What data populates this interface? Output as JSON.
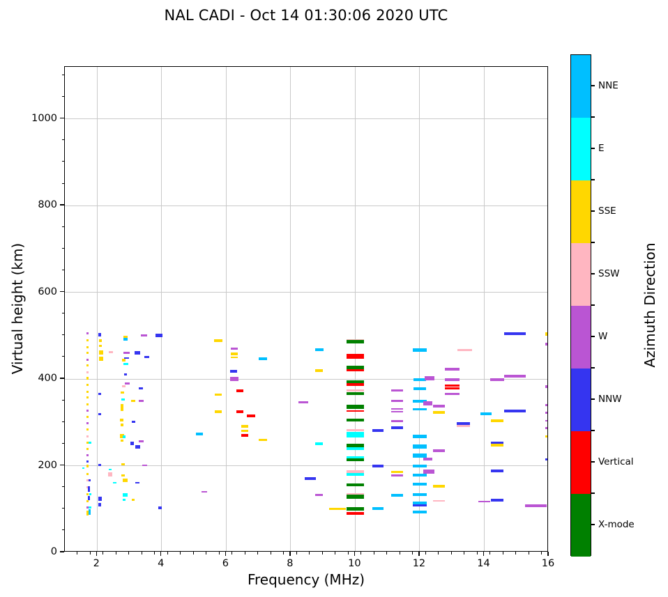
{
  "title": "NAL CADI - Oct 14 01:30:06 2020 UTC",
  "chart_data": {
    "type": "scatter",
    "title": "NAL CADI - Oct 14 01:30:06 2020 UTC",
    "xlabel": "Frequency (MHz)",
    "ylabel": "Virtual height (km)",
    "xlim": [
      1,
      16
    ],
    "ylim": [
      0,
      1120
    ],
    "x_ticks": [
      2,
      4,
      6,
      8,
      10,
      12,
      14,
      16
    ],
    "y_ticks": [
      0,
      200,
      400,
      600,
      800,
      1000
    ],
    "x_minor_step": 0.4,
    "y_minor_step": 50,
    "grid": true,
    "marker": "horizontal-dash",
    "colorbar": {
      "label": "Azimuth Direction",
      "segments_top_to_bottom": [
        {
          "label": "NNE",
          "color": "#00BFFF"
        },
        {
          "label": "E",
          "color": "#00FFFF"
        },
        {
          "label": "SSE",
          "color": "#FFD700"
        },
        {
          "label": "SSW",
          "color": "#FFB6C1"
        },
        {
          "label": "W",
          "color": "#BA55D3"
        },
        {
          "label": "NNW",
          "color": "#3535F0"
        },
        {
          "label": "Vertical",
          "color": "#FF0000"
        },
        {
          "label": "X-mode",
          "color": "#008000"
        }
      ]
    },
    "direction_colors": {
      "NNE": "#00BFFF",
      "E": "#00FFFF",
      "SSE": "#FFD700",
      "SSW": "#FFB6C1",
      "W": "#BA55D3",
      "NNW": "#3535F0",
      "V": "#FF0000",
      "X": "#008000"
    },
    "points_format": [
      "freq_MHz",
      "height_km",
      "direction",
      "dash_width_MHz",
      "dash_thickness_px"
    ],
    "points": [
      [
        1.7,
        505,
        "W",
        0.07,
        3
      ],
      [
        1.7,
        490,
        "SSE",
        0.07,
        3
      ],
      [
        1.7,
        474,
        "SSE",
        0.07,
        3
      ],
      [
        1.7,
        460,
        "SSE",
        0.07,
        3
      ],
      [
        1.7,
        445,
        "W",
        0.07,
        3
      ],
      [
        1.7,
        431,
        "SSE",
        0.07,
        3
      ],
      [
        1.7,
        416,
        "SSW",
        0.07,
        3
      ],
      [
        1.7,
        401,
        "SSE",
        0.07,
        4
      ],
      [
        1.7,
        386,
        "SSE",
        0.07,
        3
      ],
      [
        1.7,
        371,
        "SSE",
        0.07,
        3
      ],
      [
        1.7,
        357,
        "SSE",
        0.07,
        3
      ],
      [
        1.7,
        342,
        "SSE",
        0.07,
        3
      ],
      [
        1.7,
        327,
        "W",
        0.07,
        3
      ],
      [
        1.7,
        312,
        "SSE",
        0.07,
        3
      ],
      [
        1.7,
        298,
        "W",
        0.07,
        3
      ],
      [
        1.7,
        283,
        "SSE",
        0.07,
        3
      ],
      [
        1.7,
        268,
        "SSW",
        0.07,
        3
      ],
      [
        1.7,
        253,
        "SSE",
        0.07,
        3
      ],
      [
        1.78,
        253,
        "E",
        0.07,
        3
      ],
      [
        1.7,
        239,
        "SSE",
        0.07,
        3
      ],
      [
        1.7,
        224,
        "W",
        0.07,
        3
      ],
      [
        1.7,
        209,
        "NNW",
        0.07,
        3
      ],
      [
        1.7,
        199,
        "SSE",
        0.07,
        4
      ],
      [
        1.57,
        194,
        "E",
        0.05,
        2
      ],
      [
        1.7,
        180,
        "SSE",
        0.07,
        3
      ],
      [
        1.7,
        167,
        "SSW",
        0.07,
        3
      ],
      [
        1.76,
        166,
        "NNW",
        0.07,
        3
      ],
      [
        1.7,
        151,
        "SSW",
        0.07,
        3
      ],
      [
        1.75,
        146,
        "NNW",
        0.07,
        8
      ],
      [
        1.7,
        134,
        "SSE",
        0.07,
        3
      ],
      [
        1.79,
        134,
        "E",
        0.07,
        3
      ],
      [
        1.75,
        125,
        "NNW",
        0.07,
        6
      ],
      [
        1.7,
        118,
        "SSE",
        0.07,
        3
      ],
      [
        1.7,
        103,
        "W",
        0.07,
        3
      ],
      [
        1.78,
        103,
        "E",
        0.07,
        3
      ],
      [
        1.7,
        93,
        "SSE",
        0.07,
        4
      ],
      [
        1.77,
        93,
        "NNE",
        0.07,
        8
      ],
      [
        1.7,
        88,
        "SSE",
        0.07,
        3
      ],
      [
        2.08,
        502,
        "NNW",
        0.1,
        5
      ],
      [
        2.1,
        489,
        "SSE",
        0.1,
        4
      ],
      [
        2.1,
        477,
        "SSE",
        0.1,
        3
      ],
      [
        2.12,
        461,
        "SSE",
        0.12,
        6
      ],
      [
        2.12,
        447,
        "SSE",
        0.12,
        6
      ],
      [
        2.08,
        365,
        "NNW",
        0.1,
        3
      ],
      [
        2.08,
        319,
        "NNW",
        0.1,
        3
      ],
      [
        2.08,
        201,
        "NNW",
        0.1,
        3
      ],
      [
        2.09,
        124,
        "NNW",
        0.1,
        6
      ],
      [
        2.08,
        110,
        "NNW",
        0.1,
        5
      ],
      [
        3.45,
        501,
        "W",
        0.18,
        3
      ],
      [
        3.92,
        500,
        "NNW",
        0.22,
        5
      ],
      [
        2.88,
        497,
        "SSE",
        0.15,
        4
      ],
      [
        2.88,
        491,
        "NNE",
        0.15,
        4
      ],
      [
        2.43,
        462,
        "SSW",
        0.12,
        3
      ],
      [
        2.91,
        460,
        "W",
        0.18,
        3
      ],
      [
        3.25,
        461,
        "NNW",
        0.18,
        5
      ],
      [
        3.54,
        451,
        "NNW",
        0.15,
        3
      ],
      [
        2.91,
        449,
        "NNW",
        0.15,
        2
      ],
      [
        2.82,
        444,
        "SSE",
        0.1,
        4
      ],
      [
        2.9,
        434,
        "E",
        0.15,
        3
      ],
      [
        2.88,
        410,
        "NNW",
        0.1,
        3
      ],
      [
        2.93,
        390,
        "W",
        0.15,
        3
      ],
      [
        2.83,
        383,
        "SSW",
        0.1,
        3
      ],
      [
        3.36,
        378,
        "NNW",
        0.12,
        3
      ],
      [
        2.78,
        369,
        "SSE",
        0.1,
        3
      ],
      [
        2.8,
        353,
        "E",
        0.1,
        3
      ],
      [
        3.12,
        349,
        "SSE",
        0.12,
        3
      ],
      [
        3.37,
        350,
        "W",
        0.15,
        3
      ],
      [
        2.77,
        339,
        "SSE",
        0.1,
        5
      ],
      [
        2.77,
        331,
        "SSE",
        0.1,
        5
      ],
      [
        2.76,
        306,
        "SSE",
        0.1,
        4
      ],
      [
        3.13,
        301,
        "NNW",
        0.1,
        3
      ],
      [
        2.77,
        294,
        "SSE",
        0.1,
        4
      ],
      [
        2.77,
        269,
        "SSE",
        0.12,
        6
      ],
      [
        2.83,
        266,
        "E",
        0.08,
        4
      ],
      [
        2.77,
        258,
        "SSE",
        0.1,
        3
      ],
      [
        3.36,
        256,
        "W",
        0.15,
        3
      ],
      [
        3.09,
        252,
        "NNW",
        0.12,
        5
      ],
      [
        3.25,
        244,
        "NNW",
        0.15,
        5
      ],
      [
        2.8,
        203,
        "SSE",
        0.1,
        3
      ],
      [
        3.48,
        201,
        "W",
        0.15,
        2
      ],
      [
        2.4,
        192,
        "E",
        0.08,
        2
      ],
      [
        2.41,
        180,
        "SSW",
        0.12,
        6
      ],
      [
        2.81,
        177,
        "SSE",
        0.1,
        3
      ],
      [
        2.87,
        167,
        "SSE",
        0.15,
        5
      ],
      [
        2.55,
        161,
        "E",
        0.1,
        2
      ],
      [
        3.25,
        160,
        "NNW",
        0.12,
        2
      ],
      [
        2.87,
        132,
        "E",
        0.15,
        5
      ],
      [
        2.84,
        121,
        "E",
        0.1,
        3
      ],
      [
        3.12,
        121,
        "SSE",
        0.1,
        3
      ],
      [
        3.95,
        103,
        "NNW",
        0.12,
        4
      ],
      [
        5.76,
        489,
        "SSE",
        0.25,
        4
      ],
      [
        6.25,
        470,
        "W",
        0.22,
        3
      ],
      [
        6.25,
        458,
        "SSE",
        0.22,
        4
      ],
      [
        6.25,
        450,
        "SSE",
        0.22,
        2
      ],
      [
        7.14,
        447,
        "NNE",
        0.25,
        4
      ],
      [
        6.23,
        417,
        "NNW",
        0.22,
        4
      ],
      [
        6.25,
        400,
        "W",
        0.25,
        6
      ],
      [
        6.42,
        372,
        "V",
        0.22,
        4
      ],
      [
        5.76,
        364,
        "SSE",
        0.22,
        3
      ],
      [
        5.76,
        325,
        "SSE",
        0.22,
        4
      ],
      [
        6.42,
        325,
        "V",
        0.22,
        4
      ],
      [
        6.77,
        315,
        "V",
        0.25,
        4
      ],
      [
        6.58,
        291,
        "SSE",
        0.22,
        4
      ],
      [
        6.58,
        280,
        "SSE",
        0.22,
        3
      ],
      [
        6.58,
        270,
        "V",
        0.22,
        4
      ],
      [
        5.17,
        273,
        "NNE",
        0.2,
        4
      ],
      [
        7.14,
        259,
        "SSE",
        0.25,
        3
      ],
      [
        8.6,
        171,
        "NNW",
        0.35,
        4
      ],
      [
        5.32,
        139,
        "W",
        0.18,
        2
      ],
      [
        8.4,
        346,
        "W",
        0.3,
        3
      ],
      [
        8.89,
        467,
        "NNE",
        0.25,
        4
      ],
      [
        8.88,
        420,
        "SSE",
        0.25,
        4
      ],
      [
        8.88,
        251,
        "E",
        0.25,
        4
      ],
      [
        8.88,
        132,
        "W",
        0.25,
        3
      ],
      [
        9.45,
        101,
        "SSE",
        0.5,
        3
      ],
      [
        10.0,
        489,
        "SSW",
        0.55,
        3
      ],
      [
        10.0,
        486,
        "X",
        0.55,
        5
      ],
      [
        10.0,
        455,
        "SSW",
        0.55,
        3
      ],
      [
        10.0,
        452,
        "V",
        0.55,
        7
      ],
      [
        10.0,
        427,
        "X",
        0.55,
        5
      ],
      [
        10.0,
        420,
        "V",
        0.55,
        3
      ],
      [
        10.0,
        392,
        "X",
        0.55,
        6
      ],
      [
        10.0,
        388,
        "V",
        0.55,
        4
      ],
      [
        10.0,
        373,
        "SSW",
        0.55,
        3
      ],
      [
        10.0,
        366,
        "X",
        0.55,
        4
      ],
      [
        10.0,
        336,
        "X",
        0.55,
        6
      ],
      [
        10.0,
        327,
        "V",
        0.55,
        2
      ],
      [
        10.0,
        305,
        "X",
        0.55,
        4
      ],
      [
        10.0,
        282,
        "SSW",
        0.55,
        3
      ],
      [
        10.0,
        275,
        "E",
        0.55,
        4
      ],
      [
        10.0,
        268,
        "E",
        0.55,
        4
      ],
      [
        10.0,
        249,
        "SSW",
        0.55,
        3
      ],
      [
        10.0,
        246,
        "X",
        0.55,
        6
      ],
      [
        10.0,
        239,
        "E",
        0.55,
        4
      ],
      [
        10.0,
        218,
        "E",
        0.55,
        4
      ],
      [
        10.0,
        213,
        "X",
        0.55,
        4
      ],
      [
        10.0,
        186,
        "SSW",
        0.55,
        4
      ],
      [
        10.0,
        180,
        "E",
        0.55,
        4
      ],
      [
        10.0,
        156,
        "X",
        0.55,
        4
      ],
      [
        10.0,
        134,
        "SSW",
        0.55,
        3
      ],
      [
        10.0,
        128,
        "X",
        0.55,
        6
      ],
      [
        10.0,
        101,
        "X",
        0.55,
        5
      ],
      [
        10.0,
        90,
        "V",
        0.55,
        4
      ],
      [
        10.7,
        282,
        "NNW",
        0.35,
        4
      ],
      [
        10.7,
        200,
        "NNW",
        0.35,
        4
      ],
      [
        10.7,
        101,
        "NNE",
        0.35,
        4
      ],
      [
        11.3,
        374,
        "W",
        0.35,
        3
      ],
      [
        11.3,
        350,
        "W",
        0.35,
        3
      ],
      [
        11.3,
        331,
        "W",
        0.35,
        2
      ],
      [
        11.3,
        325,
        "W",
        0.35,
        2
      ],
      [
        11.3,
        303,
        "W",
        0.35,
        3
      ],
      [
        11.3,
        288,
        "NNW",
        0.35,
        4
      ],
      [
        11.3,
        186,
        "SSE",
        0.35,
        3
      ],
      [
        11.3,
        177,
        "W",
        0.35,
        3
      ],
      [
        11.3,
        132,
        "NNE",
        0.35,
        4
      ],
      [
        12.0,
        466,
        "NNE",
        0.42,
        5
      ],
      [
        12.0,
        398,
        "NNE",
        0.38,
        4
      ],
      [
        12.0,
        378,
        "NNE",
        0.4,
        4
      ],
      [
        12.0,
        348,
        "NNE",
        0.42,
        4
      ],
      [
        12.0,
        330,
        "NNE",
        0.42,
        3
      ],
      [
        12.0,
        267,
        "NNE",
        0.42,
        5
      ],
      [
        12.0,
        244,
        "NNE",
        0.42,
        6
      ],
      [
        12.0,
        224,
        "NNE",
        0.45,
        6
      ],
      [
        12.0,
        200,
        "NNE",
        0.42,
        4
      ],
      [
        12.0,
        178,
        "NNE",
        0.42,
        4
      ],
      [
        12.0,
        157,
        "NNE",
        0.42,
        4
      ],
      [
        12.0,
        133,
        "NNE",
        0.42,
        4
      ],
      [
        12.0,
        113,
        "NNE",
        0.42,
        6
      ],
      [
        12.0,
        109,
        "NNW",
        0.42,
        3
      ],
      [
        12.0,
        94,
        "NNE",
        0.42,
        4
      ],
      [
        12.3,
        401,
        "W",
        0.3,
        6
      ],
      [
        12.25,
        344,
        "W",
        0.3,
        6
      ],
      [
        12.6,
        337,
        "W",
        0.38,
        4
      ],
      [
        12.6,
        323,
        "SSE",
        0.38,
        4
      ],
      [
        12.6,
        235,
        "W",
        0.38,
        4
      ],
      [
        12.25,
        215,
        "W",
        0.3,
        4
      ],
      [
        12.28,
        186,
        "W",
        0.35,
        6
      ],
      [
        12.6,
        152,
        "SSE",
        0.38,
        4
      ],
      [
        12.6,
        119,
        "SSW",
        0.38,
        2
      ],
      [
        13.0,
        422,
        "W",
        0.45,
        4
      ],
      [
        13.0,
        398,
        "W",
        0.45,
        4
      ],
      [
        13.0,
        385,
        "V",
        0.45,
        3
      ],
      [
        13.0,
        379,
        "V",
        0.45,
        3
      ],
      [
        13.0,
        365,
        "W",
        0.45,
        3
      ],
      [
        13.4,
        466,
        "SSW",
        0.45,
        3
      ],
      [
        13.35,
        297,
        "NNW",
        0.42,
        4
      ],
      [
        13.35,
        292,
        "SSW",
        0.42,
        3
      ],
      [
        14.05,
        320,
        "NNE",
        0.35,
        4
      ],
      [
        14.0,
        118,
        "W",
        0.35,
        2
      ],
      [
        14.95,
        504,
        "NNW",
        0.68,
        4
      ],
      [
        14.95,
        406,
        "W",
        0.68,
        4
      ],
      [
        14.4,
        398,
        "W",
        0.42,
        4
      ],
      [
        14.4,
        304,
        "SSE",
        0.4,
        4
      ],
      [
        14.95,
        327,
        "NNW",
        0.68,
        4
      ],
      [
        14.4,
        253,
        "NNW",
        0.4,
        4
      ],
      [
        14.4,
        248,
        "SSE",
        0.4,
        4
      ],
      [
        14.4,
        188,
        "NNW",
        0.4,
        4
      ],
      [
        14.4,
        120,
        "NNW",
        0.4,
        4
      ],
      [
        15.6,
        108,
        "W",
        0.68,
        4
      ],
      [
        15.95,
        504,
        "SSE",
        0.1,
        5
      ],
      [
        15.95,
        480,
        "W",
        0.1,
        4
      ],
      [
        15.95,
        383,
        "W",
        0.1,
        4
      ],
      [
        15.95,
        340,
        "W",
        0.1,
        3
      ],
      [
        15.95,
        322,
        "W",
        0.1,
        3
      ],
      [
        15.95,
        303,
        "W",
        0.1,
        2
      ],
      [
        15.95,
        287,
        "W",
        0.1,
        3
      ],
      [
        15.95,
        268,
        "SSE",
        0.1,
        3
      ],
      [
        15.95,
        215,
        "NNW",
        0.1,
        3
      ]
    ]
  }
}
